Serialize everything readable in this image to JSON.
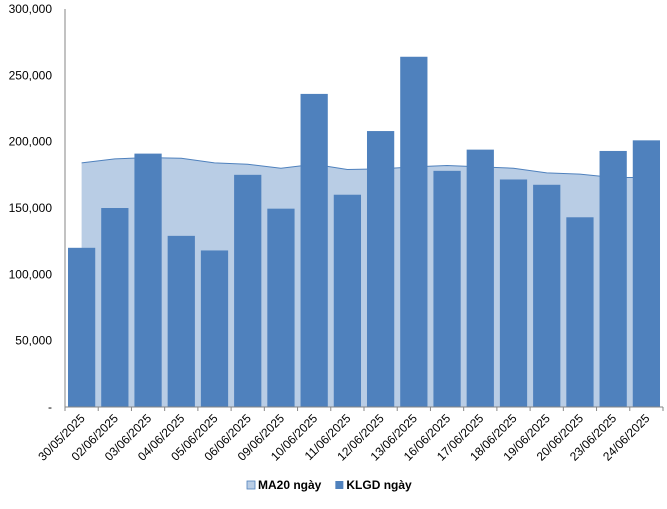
{
  "chart_data": {
    "type": "bar",
    "categories": [
      "30/05/2025",
      "02/06/2025",
      "03/06/2025",
      "04/06/2025",
      "05/06/2025",
      "06/06/2025",
      "09/06/2025",
      "10/06/2025",
      "11/06/2025",
      "12/06/2025",
      "13/06/2025",
      "16/06/2025",
      "17/06/2025",
      "18/06/2025",
      "19/06/2025",
      "20/06/2025",
      "23/06/2025",
      "24/06/2025"
    ],
    "series": [
      {
        "name": "MA20 ngày",
        "kind": "area",
        "color": "#b9cde5",
        "stroke": "#4f81bd",
        "values": [
          184000,
          187000,
          188000,
          187500,
          184000,
          183000,
          180000,
          183000,
          179000,
          179500,
          181000,
          182000,
          181000,
          180000,
          176500,
          175500,
          173000,
          173000
        ]
      },
      {
        "name": "KLGD ngày",
        "kind": "bar",
        "color": "#4f81bd",
        "values": [
          120000,
          150000,
          191000,
          129000,
          118000,
          175000,
          149500,
          236000,
          160000,
          208000,
          264000,
          178000,
          194000,
          171500,
          167500,
          143000,
          193000,
          201000
        ]
      }
    ],
    "yticks": [
      "-",
      "50,000",
      "100,000",
      "150,000",
      "200,000",
      "250,000",
      "300,000"
    ],
    "ylim": [
      0,
      300000
    ],
    "grid": false,
    "legend": "bottom"
  }
}
